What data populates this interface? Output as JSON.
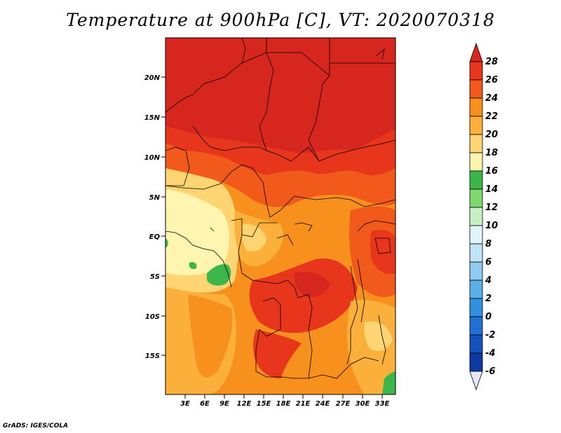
{
  "title": "Temperature at 900hPa [C], VT: 2020070318",
  "footer": "GrADS: IGES/COLA",
  "map": {
    "lat_ticks": [
      "20N",
      "15N",
      "10N",
      "5N",
      "EQ",
      "5S",
      "10S",
      "15S"
    ],
    "lon_ticks": [
      "3E",
      "6E",
      "9E",
      "12E",
      "15E",
      "18E",
      "21E",
      "24E",
      "27E",
      "30E",
      "33E"
    ]
  },
  "colorbar": {
    "labels": [
      "28",
      "26",
      "24",
      "22",
      "20",
      "18",
      "16",
      "14",
      "12",
      "10",
      "8",
      "6",
      "4",
      "2",
      "0",
      "-2",
      "-4",
      "-6"
    ],
    "colors": {
      "above_28": "#d7261e",
      "26_28": "#e8361c",
      "24_26": "#f15a1a",
      "22_24": "#f7901d",
      "20_22": "#fbb03b",
      "18_20": "#fed572",
      "16_18": "#fff5b0",
      "14_16": "#3cb64a",
      "12_14": "#7fd86d",
      "10_12": "#c7f0c3",
      "8_10": "#e3f5fb",
      "6_8": "#bfe3f7",
      "4_6": "#8fcbf0",
      "2_4": "#5aafe8",
      "0_2": "#3190e0",
      "-2_0": "#1f6fd6",
      "-4_-2": "#1452c0",
      "-6_-4": "#0c3aa0",
      "below_-6": "#0a1570",
      "below_-6_arrow": "#e6e6ff"
    }
  }
}
